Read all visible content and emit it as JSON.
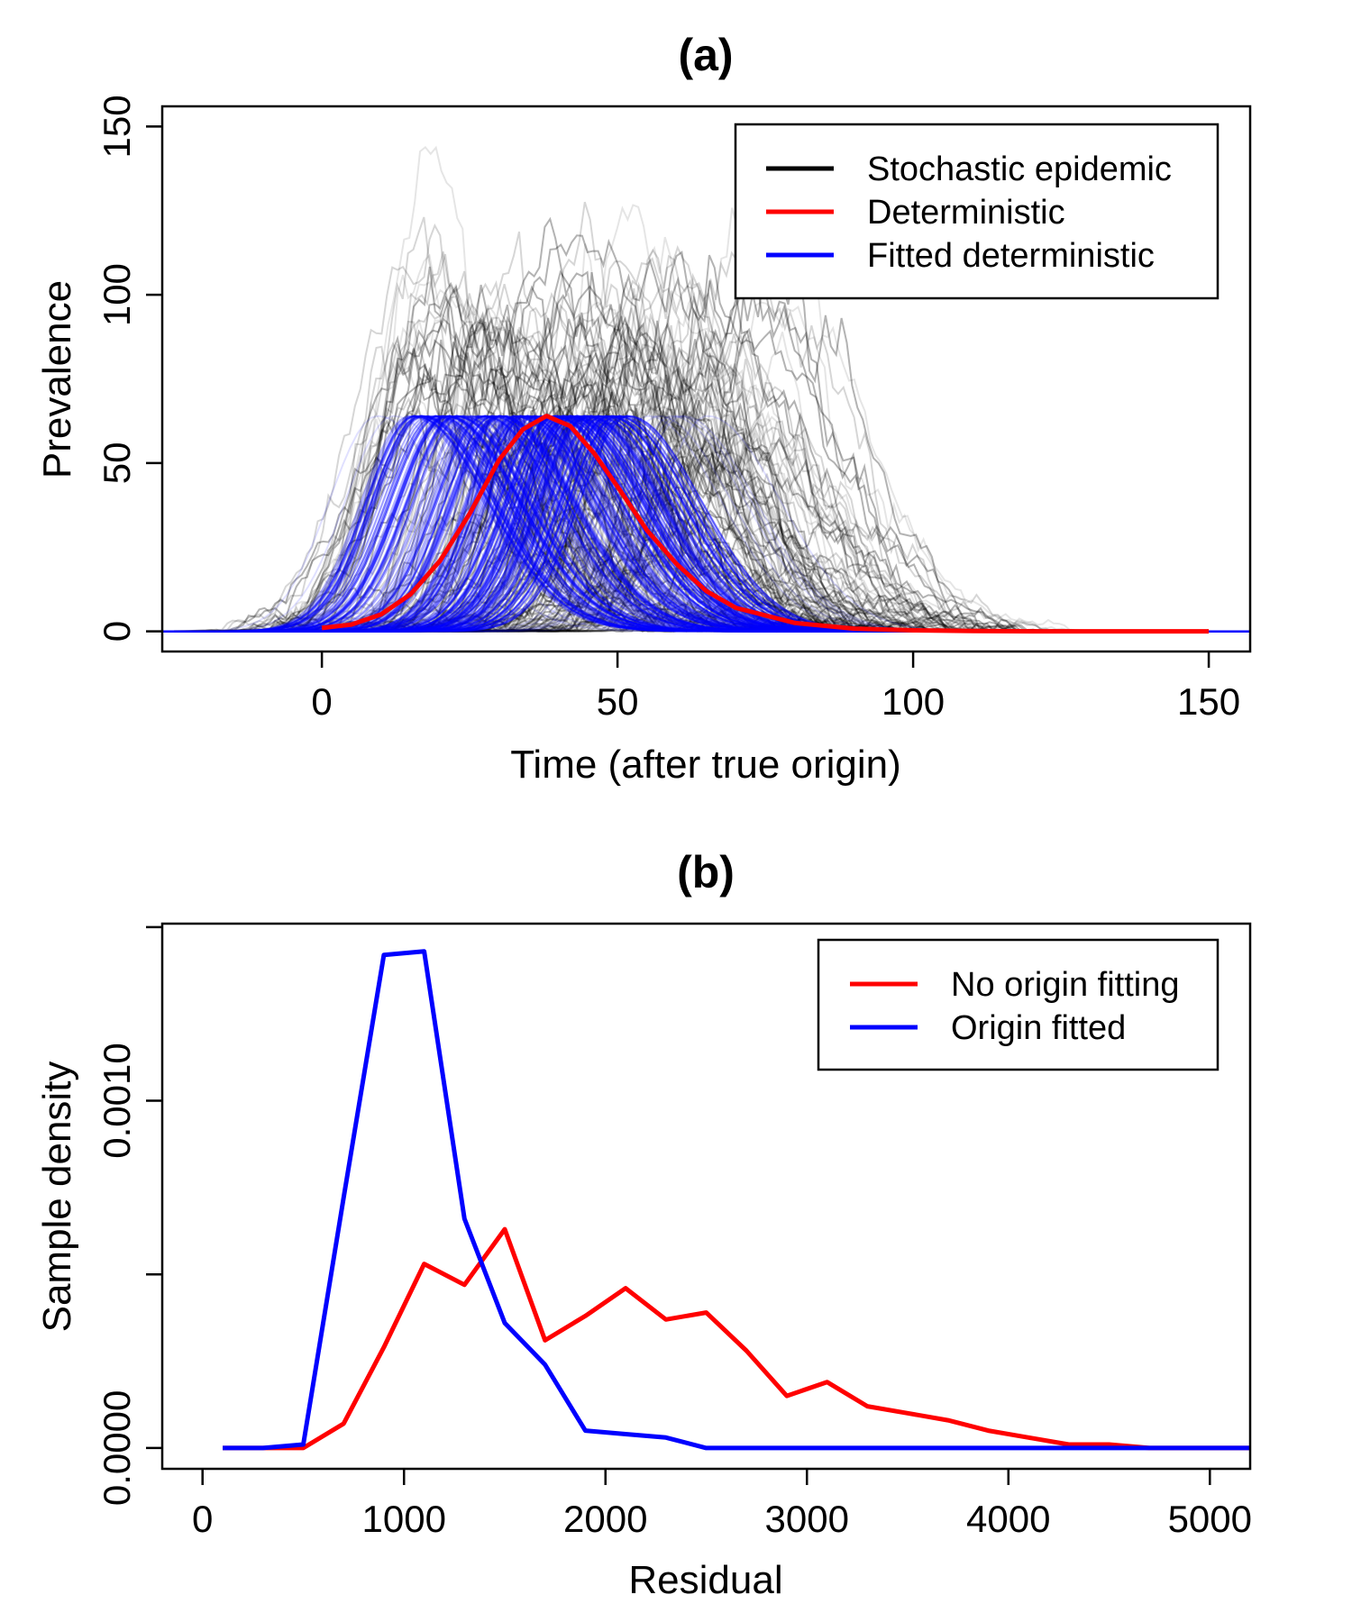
{
  "colors": {
    "stochastic": "#000000",
    "deterministic": "#ff0000",
    "fitted": "#0000ff",
    "no_origin": "#ff0000",
    "origin_fitted": "#0000ff"
  },
  "chart_data": [
    {
      "type": "line",
      "title": "(a)",
      "xlabel": "Time (after true origin)",
      "ylabel": "Prevalence",
      "xlim": [
        -27,
        157
      ],
      "ylim": [
        -6,
        156
      ],
      "x_ticks": [
        0,
        50,
        100,
        150
      ],
      "y_ticks": [
        0,
        50,
        100,
        150
      ],
      "x_tick_labels": [
        "0",
        "50",
        "100",
        "150"
      ],
      "y_tick_labels": [
        "0",
        "50",
        "100",
        "150"
      ],
      "grid": false,
      "legend": {
        "position": "top-right",
        "entries": [
          {
            "label": "Stochastic epidemic",
            "color": "#000000"
          },
          {
            "label": "Deterministic",
            "color": "#ff0000"
          },
          {
            "label": "Fitted deterministic",
            "color": "#0000ff"
          }
        ]
      },
      "series": [
        {
          "name": "Deterministic",
          "x": [
            0,
            5,
            10,
            15,
            20,
            25,
            30,
            34,
            38,
            42,
            46,
            50,
            55,
            60,
            65,
            70,
            80,
            90,
            100,
            110,
            120,
            130,
            140,
            150
          ],
          "y": [
            1,
            2,
            5,
            11,
            21,
            35,
            51,
            60,
            64,
            61,
            53,
            43,
            30,
            20,
            12,
            7,
            2.5,
            0.8,
            0.3,
            0.1,
            0,
            0,
            0,
            0
          ]
        }
      ],
      "ensembles": {
        "stochastic": {
          "label": "Stochastic epidemic",
          "peak_time_range": [
            15,
            75
          ],
          "peak_value_range": [
            25,
            155
          ],
          "max_value": 155
        },
        "fitted": {
          "label": "Fitted deterministic",
          "peak_time_range": [
            5,
            70
          ],
          "peak_value": 64
        }
      }
    },
    {
      "type": "line",
      "title": "(b)",
      "xlabel": "Residual",
      "ylabel": "Sample density",
      "xlim": [
        -200,
        5200
      ],
      "ylim": [
        -6e-05,
        0.00151
      ],
      "x_ticks": [
        0,
        1000,
        2000,
        3000,
        4000,
        5000
      ],
      "y_ticks": [
        0,
        0.0005,
        0.001,
        0.0015
      ],
      "x_tick_labels": [
        "0",
        "1000",
        "2000",
        "3000",
        "4000",
        "5000"
      ],
      "y_tick_labels": [
        "0.0000",
        "",
        "0.0010",
        ""
      ],
      "grid": false,
      "legend": {
        "position": "top-right",
        "entries": [
          {
            "label": "No origin fitting",
            "color": "#ff0000"
          },
          {
            "label": "Origin fitted",
            "color": "#0000ff"
          }
        ]
      },
      "x": [
        100,
        300,
        500,
        700,
        900,
        1100,
        1300,
        1500,
        1700,
        1900,
        2100,
        2300,
        2500,
        2700,
        2900,
        3100,
        3300,
        3500,
        3700,
        3900,
        4100,
        4300,
        4500,
        4700,
        4900,
        5100,
        5200
      ],
      "series": [
        {
          "name": "No origin fitting",
          "values": [
            0,
            0,
            0,
            7e-05,
            0.00029,
            0.00053,
            0.00047,
            0.00063,
            0.00031,
            0.00038,
            0.00046,
            0.00037,
            0.00039,
            0.00028,
            0.00015,
            0.00019,
            0.00012,
            0.0001,
            8e-05,
            5e-05,
            3e-05,
            1e-05,
            1e-05,
            0,
            0,
            0,
            0
          ]
        },
        {
          "name": "Origin fitted",
          "values": [
            0,
            0,
            1e-05,
            0.00072,
            0.00142,
            0.00143,
            0.00066,
            0.00036,
            0.00024,
            5e-05,
            4e-05,
            3e-05,
            0,
            0,
            0,
            0,
            0,
            0,
            0,
            0,
            0,
            0,
            0,
            0,
            0,
            0,
            0
          ]
        }
      ]
    }
  ]
}
